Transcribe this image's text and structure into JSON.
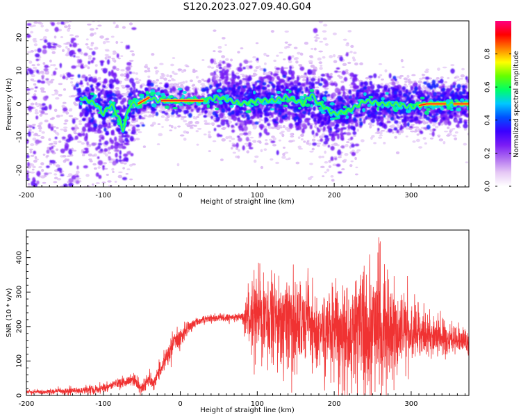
{
  "figure_title": "S120.2023.027.09.40.G04",
  "chart_data": [
    {
      "type": "heatmap",
      "xlabel": "Height of straight line (km)",
      "ylabel": "Frequency (Hz)",
      "xlim": [
        -200,
        375
      ],
      "ylim": [
        -25,
        25
      ],
      "x_ticks": [
        -200,
        -100,
        0,
        100,
        200,
        300
      ],
      "y_ticks": [
        -20,
        -10,
        0,
        10,
        20
      ],
      "colorbar": {
        "label": "Normalized spectral amplitude",
        "range": [
          0,
          1
        ],
        "ticks": [
          0.0,
          0.2,
          0.4,
          0.6,
          0.8
        ],
        "tick_labels": [
          "0.0",
          "0.2",
          "0.4",
          "0.6",
          "0.8"
        ],
        "colormap": [
          "#ffffff",
          "#e6c8f5",
          "#b070f0",
          "#7a1cf5",
          "#3a00ff",
          "#0050ff",
          "#00c8ff",
          "#00ff66",
          "#66ff00",
          "#ffff00",
          "#ff8000",
          "#ff0000",
          "#ff0080"
        ]
      },
      "ridge": {
        "x": [
          -130,
          -110,
          -100,
          -90,
          -80,
          -75,
          -70,
          -65,
          -55,
          -40,
          -30,
          0,
          30,
          50,
          80,
          100,
          120,
          140,
          160,
          170,
          180,
          200,
          220,
          240,
          260,
          280,
          300,
          320,
          340,
          360,
          375
        ],
        "y": [
          2,
          0,
          -3,
          0,
          -4,
          -8,
          -4,
          0,
          0,
          2,
          1,
          1,
          1,
          2,
          0,
          1,
          1,
          2,
          0,
          3,
          0,
          -3,
          -2,
          1,
          0,
          0,
          -1,
          0,
          0,
          0,
          0
        ]
      }
    },
    {
      "type": "line",
      "xlabel": "Height of straight line (km)",
      "ylabel": "SNR (10 * v/v)",
      "xlim": [
        -200,
        375
      ],
      "ylim": [
        0,
        480
      ],
      "x_ticks": [
        -200,
        -100,
        0,
        100,
        200,
        300
      ],
      "y_ticks": [
        0,
        100,
        200,
        300,
        400
      ],
      "color": "#f03232",
      "envelope": {
        "x": [
          -200,
          -150,
          -100,
          -80,
          -60,
          -50,
          -40,
          -35,
          -30,
          -20,
          -10,
          0,
          10,
          20,
          30,
          40,
          60,
          80,
          85,
          100,
          120,
          140,
          160,
          180,
          200,
          220,
          240,
          255,
          270,
          280,
          300,
          330,
          360,
          375
        ],
        "center": [
          10,
          12,
          20,
          35,
          45,
          20,
          50,
          30,
          60,
          100,
          150,
          170,
          195,
          210,
          220,
          225,
          225,
          230,
          230,
          225,
          220,
          210,
          205,
          190,
          195,
          180,
          185,
          190,
          190,
          185,
          180,
          170,
          160,
          155
        ],
        "amplitude": [
          5,
          8,
          12,
          15,
          15,
          15,
          20,
          15,
          20,
          30,
          30,
          25,
          15,
          12,
          10,
          10,
          10,
          10,
          60,
          120,
          140,
          130,
          110,
          100,
          120,
          140,
          180,
          200,
          150,
          100,
          80,
          50,
          35,
          30
        ]
      }
    }
  ]
}
